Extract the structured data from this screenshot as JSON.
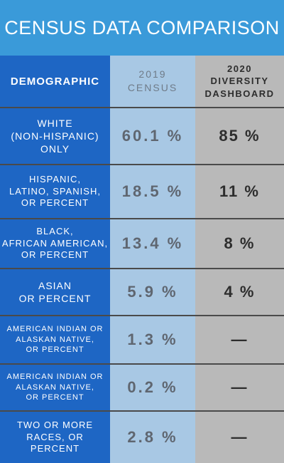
{
  "title": "CENSUS DATA COMPARISON",
  "header": {
    "demographic": "DEMOGRAPHIC",
    "col2019": [
      "2019",
      "CENSUS"
    ],
    "col2020": [
      "2020",
      "DIVERSITY",
      "DASHBOARD"
    ]
  },
  "rows": [
    {
      "label": [
        "WHITE",
        "(NON-HISPANIC)",
        "ONLY"
      ],
      "census_2019": "60.1 %",
      "dashboard_2020": "85 %"
    },
    {
      "label": [
        "HISPANIC,",
        "LATINO, SPANISH,",
        "OR PERCENT"
      ],
      "census_2019": "18.5 %",
      "dashboard_2020": "11 %"
    },
    {
      "label": [
        "BLACK,",
        "AFRICAN AMERICAN,",
        "OR PERCENT"
      ],
      "census_2019": "13.4 %",
      "dashboard_2020": "8 %"
    },
    {
      "label": [
        "ASIAN",
        "OR PERCENT"
      ],
      "census_2019": "5.9 %",
      "dashboard_2020": "4 %"
    },
    {
      "label": [
        "AMERICAN INDIAN OR",
        "ALASKAN NATIVE,",
        "OR PERCENT"
      ],
      "census_2019": "1.3 %",
      "dashboard_2020": "—"
    },
    {
      "label": [
        "AMERICAN INDIAN OR",
        "ALASKAN NATIVE,",
        "OR PERCENT"
      ],
      "census_2019": "0.2 %",
      "dashboard_2020": "—"
    },
    {
      "label": [
        "TWO OR MORE",
        "RACES, OR",
        "PERCENT"
      ],
      "census_2019": "2.8 %",
      "dashboard_2020": "—"
    }
  ],
  "colors": {
    "title_bg": "#3a9ad9",
    "demographic_col": "#1e66c4",
    "census_col": "#a8c8e4",
    "dashboard_col": "#b9b9b9"
  }
}
